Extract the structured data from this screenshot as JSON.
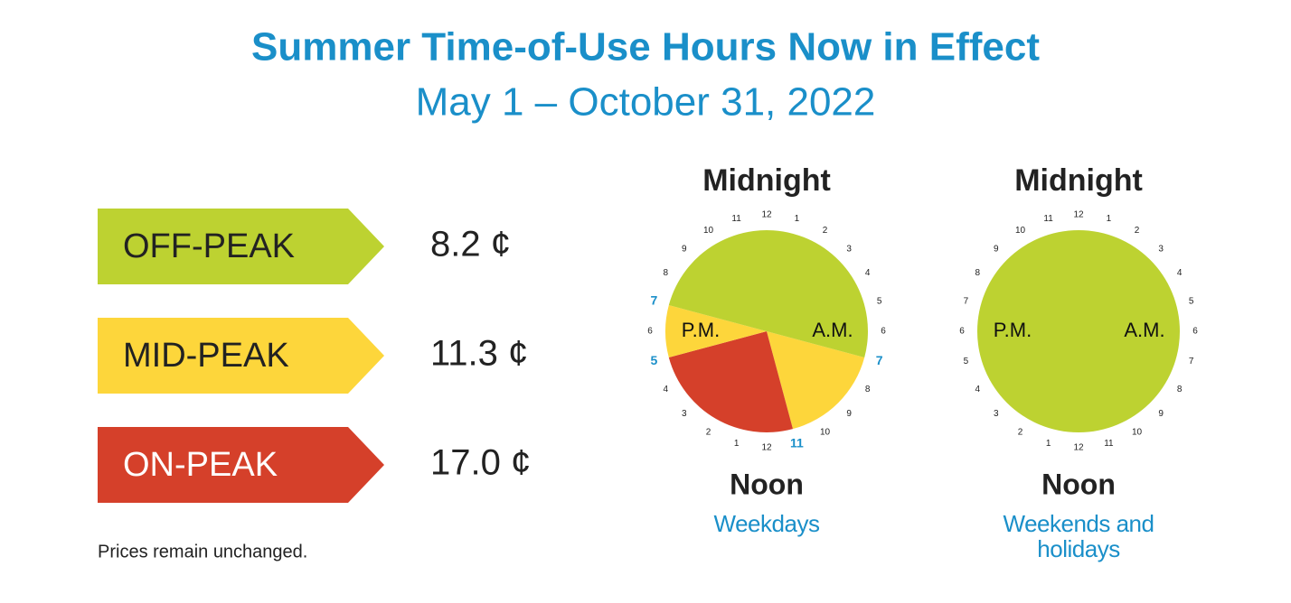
{
  "header": {
    "title": "Summer Time-of-Use Hours Now in Effect",
    "subtitle": "May 1 – October 31, 2022"
  },
  "rates": [
    {
      "name": "OFF-PEAK",
      "price": "8.2 ¢",
      "color": "#bdd231",
      "text_color": "#222222"
    },
    {
      "name": "MID-PEAK",
      "price": "11.3 ¢",
      "color": "#fdd63b",
      "text_color": "#222222"
    },
    {
      "name": "ON-PEAK",
      "price": "17.0 ¢",
      "color": "#d5402a",
      "text_color": "#ffffff"
    }
  ],
  "note": "Prices remain unchanged.",
  "highlight_color": "#1a8fc9",
  "clocks": [
    {
      "top_label": "Midnight",
      "bottom_label": "Noon",
      "left_label": "P.M.",
      "right_label": "A.M.",
      "caption": "Weekdays",
      "hour_labels": [
        "12",
        "1",
        "2",
        "3",
        "4",
        "5",
        "6",
        "7",
        "8",
        "9",
        "10",
        "11",
        "12",
        "1",
        "2",
        "3",
        "4",
        "5",
        "6",
        "7",
        "8",
        "9",
        "10",
        "11"
      ],
      "segments": [
        {
          "start": 7,
          "end": 11,
          "color": "#fdd63b"
        },
        {
          "start": 11,
          "end": 17,
          "color": "#d5402a"
        },
        {
          "start": 17,
          "end": 19,
          "color": "#fdd63b"
        },
        {
          "start": 19,
          "end": 7,
          "color": "#bdd231"
        }
      ]
    },
    {
      "top_label": "Midnight",
      "bottom_label": "Noon",
      "left_label": "P.M.",
      "right_label": "A.M.",
      "caption": "Weekends and holidays",
      "hour_labels": [
        "12",
        "1",
        "2",
        "3",
        "4",
        "5",
        "6",
        "7",
        "8",
        "9",
        "10",
        "11",
        "12",
        "1",
        "2",
        "3",
        "4",
        "5",
        "6",
        "7",
        "8",
        "9",
        "10",
        "11"
      ],
      "segments": [
        {
          "start": 0,
          "end": 24,
          "color": "#bdd231"
        }
      ]
    }
  ]
}
